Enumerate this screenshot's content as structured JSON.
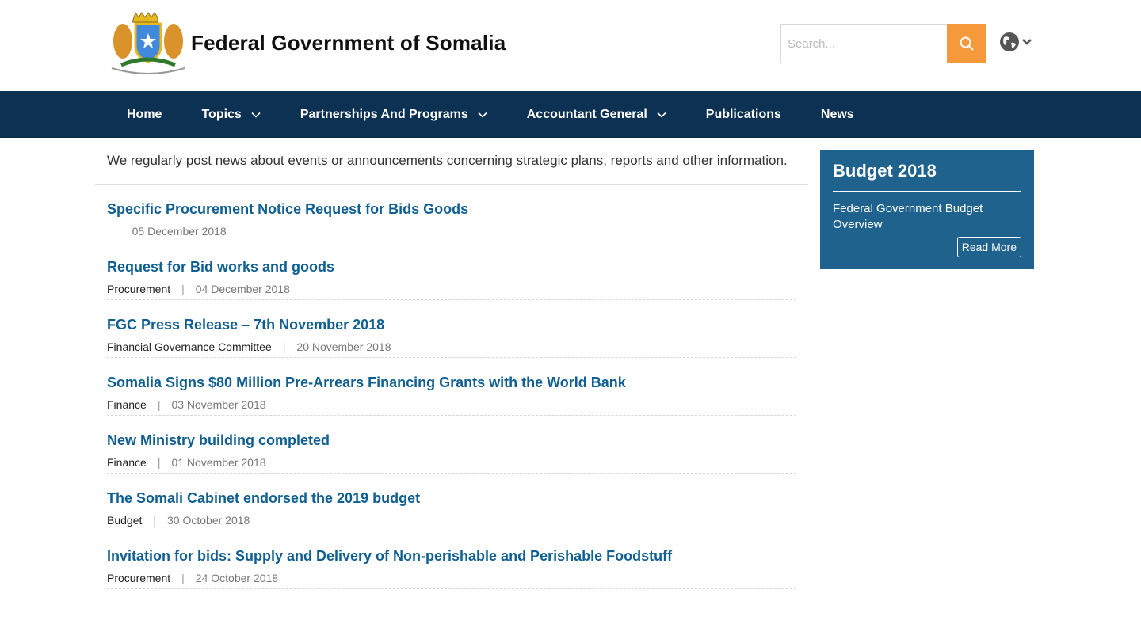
{
  "header": {
    "site_title": "Federal Government of Somalia",
    "search_placeholder": "Search...",
    "colors": {
      "search_button": "#f5993a",
      "nav": "#0c3152",
      "link": "#0f5f92",
      "sidebar": "#1f628e"
    }
  },
  "nav": {
    "items": [
      {
        "label": "Home",
        "dropdown": false
      },
      {
        "label": "Topics",
        "dropdown": true
      },
      {
        "label": "Partnerships And Programs",
        "dropdown": true
      },
      {
        "label": "Accountant General",
        "dropdown": true
      },
      {
        "label": "Publications",
        "dropdown": false
      },
      {
        "label": "News",
        "dropdown": false
      }
    ]
  },
  "main": {
    "intro": "We regularly post news about events or announcements concerning strategic plans, reports and other information.",
    "articles": [
      {
        "title": "Specific Procurement Notice Request for Bids Goods",
        "category": "",
        "date": "05 December 2018"
      },
      {
        "title": "Request for Bid works and goods",
        "category": "Procurement",
        "date": "04 December 2018"
      },
      {
        "title": "FGC Press Release – 7th November 2018",
        "category": "Financial Governance Committee",
        "date": "20 November 2018"
      },
      {
        "title": "Somalia Signs $80 Million Pre-Arrears Financing Grants with the World Bank",
        "category": "Finance",
        "date": "03 November 2018"
      },
      {
        "title": "New Ministry building completed",
        "category": "Finance",
        "date": "01 November 2018"
      },
      {
        "title": "The Somali Cabinet endorsed the 2019 budget",
        "category": "Budget",
        "date": "30 October 2018"
      },
      {
        "title": "Invitation for bids: Supply and Delivery of Non-perishable and Perishable Foodstuff",
        "category": "Procurement",
        "date": "24 October 2018"
      }
    ]
  },
  "sidebar": {
    "title": "Budget 2018",
    "text": "Federal Government Budget Overview",
    "button": "Read More"
  }
}
